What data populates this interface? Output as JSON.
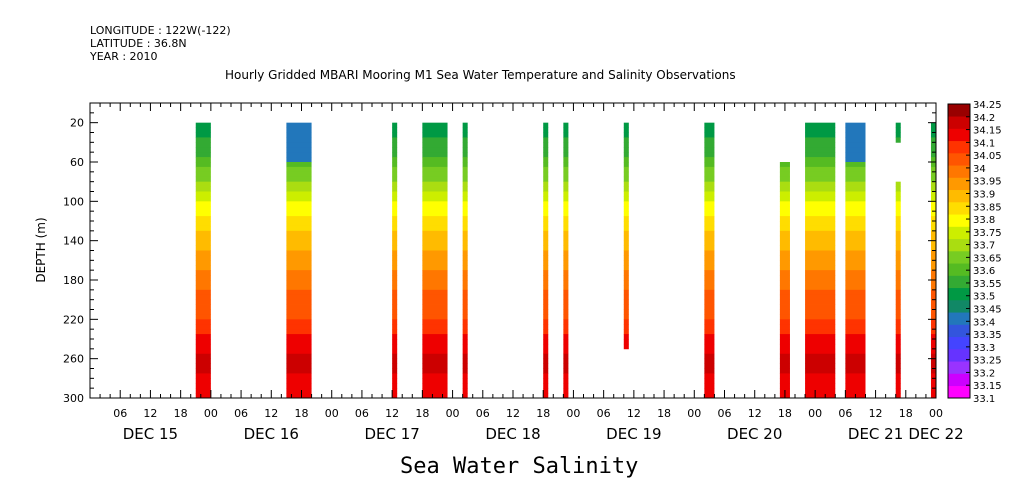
{
  "header": {
    "longitude": "LONGITUDE : 122W(-122)",
    "latitude": "LATITUDE : 36.8N",
    "year": "YEAR : 2010"
  },
  "bottom_label": "Sea Water Salinity",
  "chart_data": {
    "type": "heatmap",
    "title": "Hourly Gridded MBARI Mooring M1 Sea Water Temperature and Salinity Observations",
    "xlabel": "",
    "ylabel": "DEPTH (m)",
    "x_hours_range": [
      0,
      168
    ],
    "ylim": [
      300,
      0
    ],
    "y_ticks": [
      20,
      60,
      100,
      140,
      180,
      220,
      260,
      300
    ],
    "x_tick_labels": [
      "06",
      "12",
      "18",
      "00",
      "06",
      "12",
      "18",
      "00",
      "06",
      "12",
      "18",
      "00",
      "06",
      "12",
      "18",
      "00",
      "06",
      "12",
      "18",
      "00",
      "06",
      "12",
      "18",
      "00",
      "06",
      "12",
      "18",
      "00"
    ],
    "day_labels": [
      "DEC 15",
      "DEC 16",
      "DEC 17",
      "DEC 18",
      "DEC 19",
      "DEC 20",
      "DEC 21",
      "DEC 22"
    ],
    "colorbar": {
      "levels": [
        33.1,
        33.15,
        33.2,
        33.25,
        33.3,
        33.35,
        33.4,
        33.45,
        33.5,
        33.55,
        33.6,
        33.65,
        33.7,
        33.75,
        33.8,
        33.85,
        33.9,
        33.95,
        34,
        34.05,
        34.1,
        34.15,
        34.2,
        34.25
      ],
      "colors": [
        "#ff00ff",
        "#cc00ff",
        "#9933ff",
        "#6633ff",
        "#4444ff",
        "#3355dd",
        "#2277bb",
        "#118866",
        "#009944",
        "#33aa33",
        "#55bb22",
        "#77cc22",
        "#aadd11",
        "#ccee00",
        "#ffff00",
        "#ffdd00",
        "#ffbb00",
        "#ff9900",
        "#ff7700",
        "#ff5500",
        "#ff3300",
        "#ee0000",
        "#cc0000",
        "#990000"
      ]
    },
    "columns": [
      {
        "start": 21,
        "end": 24,
        "top": 20,
        "bottom": 300
      },
      {
        "start": 39,
        "end": 44,
        "top": 20,
        "bottom": 300,
        "top_partial": 60
      },
      {
        "start": 60,
        "end": 61,
        "top": 20,
        "bottom": 300
      },
      {
        "start": 66,
        "end": 71,
        "top": 20,
        "bottom": 300
      },
      {
        "start": 74,
        "end": 75,
        "top": 20,
        "bottom": 300
      },
      {
        "start": 90,
        "end": 91,
        "top": 20,
        "bottom": 300
      },
      {
        "start": 94,
        "end": 95,
        "top": 20,
        "bottom": 300
      },
      {
        "start": 106,
        "end": 107,
        "top": 20,
        "bottom": 250
      },
      {
        "start": 122,
        "end": 124,
        "top": 20,
        "bottom": 300
      },
      {
        "start": 137,
        "end": 139,
        "top": 60,
        "bottom": 300
      },
      {
        "start": 142,
        "end": 148,
        "top": 20,
        "bottom": 300
      },
      {
        "start": 150,
        "end": 154,
        "top": 20,
        "bottom": 300,
        "top_partial": 60
      },
      {
        "start": 160,
        "end": 161,
        "top": 20,
        "bottom": 40
      },
      {
        "start": 160,
        "end": 161,
        "top": 80,
        "bottom": 300
      },
      {
        "start": 167,
        "end": 168,
        "top": 20,
        "bottom": 300
      }
    ]
  }
}
